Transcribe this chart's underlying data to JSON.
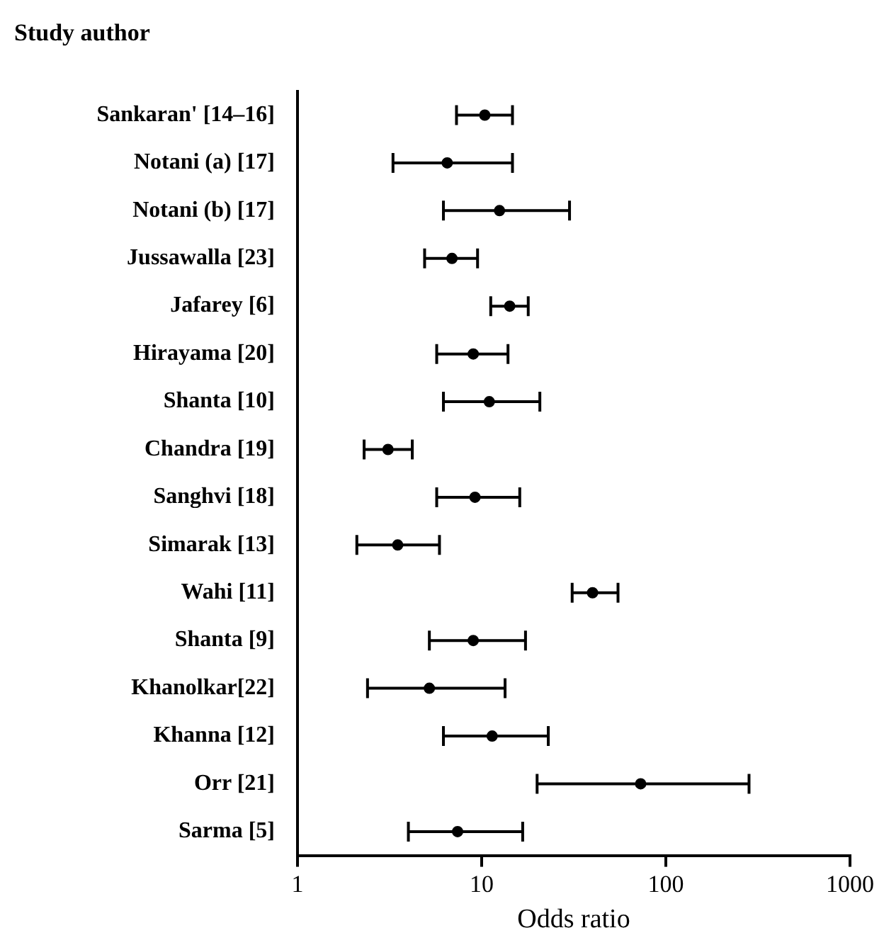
{
  "chart_data": {
    "type": "scatter",
    "orientation": "horizontal",
    "ylabel": "Study author",
    "xlabel": "Odds ratio",
    "categories": [
      "Sankaran' [14–16]",
      "Notani (a) [17]",
      "Notani (b) [17]",
      "Jussawalla [23]",
      "Jafarey [6]",
      "Hirayama [20]",
      "Shanta [10]",
      "Chandra [19]",
      "Sanghvi [18]",
      "Simarak [13]",
      "Wahi [11]",
      "Shanta [9]",
      "Khanolkar[22]",
      "Khanna [12]",
      "Orr [21]",
      "Sarma [5]"
    ],
    "values": [
      10.4,
      6.5,
      12.5,
      6.9,
      14.2,
      9.0,
      11.0,
      3.1,
      9.2,
      3.5,
      40,
      9.0,
      5.2,
      11.4,
      73,
      7.4
    ],
    "errors": [
      [
        7.3,
        14.7
      ],
      [
        3.3,
        14.7
      ],
      [
        6.2,
        30
      ],
      [
        4.9,
        9.5
      ],
      [
        11.2,
        17.9
      ],
      [
        5.7,
        13.9
      ],
      [
        6.2,
        20.7
      ],
      [
        2.3,
        4.2
      ],
      [
        5.7,
        16.1
      ],
      [
        2.1,
        5.9
      ],
      [
        31,
        55
      ],
      [
        5.2,
        17.3
      ],
      [
        2.4,
        13.4
      ],
      [
        6.2,
        23
      ],
      [
        20,
        283
      ],
      [
        4.0,
        16.7
      ]
    ],
    "color": "#000000",
    "log": "x",
    "xlim": [
      1,
      1000
    ],
    "xticks": [
      1,
      10,
      100,
      1000
    ],
    "grid": false,
    "legend": false
  }
}
